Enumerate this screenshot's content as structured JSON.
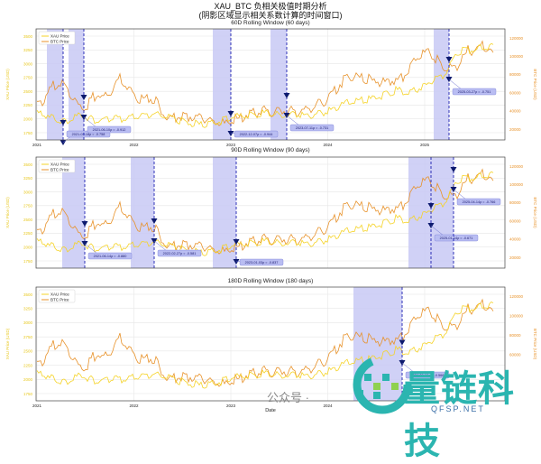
{
  "title": {
    "line1": "XAU_BTC 负相关极值时期分析",
    "line2": "(阴影区域显示相关系数计算的时间窗口)"
  },
  "xlabel": "Date",
  "watermark": {
    "brand": "量链科技",
    "url": "QFSP.NET",
    "wechat": "公众号 ·"
  },
  "colors": {
    "xau": "#f5d327",
    "btc": "#e8922a",
    "shade": "#c8c9f5",
    "marker": "#0d1a6e",
    "dash": "#1c1fb0",
    "label_bg": "#b9bdf2"
  },
  "chart_data": [
    {
      "type": "line",
      "title": "60D Rolling Window (60 days)",
      "xlabel": "",
      "ylabel_left": "XAU Price (USD)",
      "ylabel_right": "BTC Price (USD)",
      "yticks_left": [
        "3500",
        "3250",
        "3000",
        "2750",
        "2500",
        "2250",
        "2000",
        "1750"
      ],
      "yticks_right": [
        "120000",
        "100000",
        "80000",
        "60000",
        "40000",
        "20000"
      ],
      "xticks": [
        "2021",
        "2022",
        "2023",
        "2024",
        "2025"
      ],
      "legend": [
        "XAU Price",
        "BTC Price"
      ],
      "legend_position": "upper left",
      "grid": true,
      "annotations": [
        {
          "date": "2021-03-18",
          "label": "2021-03-18ρ = -0.758",
          "r": -0.758
        },
        {
          "date": "2021-06-10",
          "label": "2021-06-10ρ = -0.912",
          "r": -0.912
        },
        {
          "date": "2022-12-07",
          "label": "2022-12-07ρ = -0.944",
          "r": -0.944
        },
        {
          "date": "2023-07-11",
          "label": "2023-07-11ρ = -0.731",
          "r": -0.731
        },
        {
          "date": "2025-03-27",
          "label": "2025-03-27ρ = -0.751",
          "r": -0.751
        }
      ]
    },
    {
      "type": "line",
      "title": "90D Rolling Window (90 days)",
      "ylabel_left": "XAU Price (USD)",
      "ylabel_right": "BTC Price (USD)",
      "yticks_left": [
        "3500",
        "3250",
        "3000",
        "2750",
        "2500",
        "2250",
        "2000",
        "1750"
      ],
      "yticks_right": [
        "120000",
        "100000",
        "80000",
        "60000",
        "40000",
        "20000"
      ],
      "legend": [
        "XAU Price",
        "BTC Price"
      ],
      "grid": true,
      "annotations": [
        {
          "date": "2021-06-14",
          "label": "2021-06-14ρ = -0.880",
          "r": -0.88
        },
        {
          "date": "2022-02-27",
          "label": "2022-02-27ρ = -0.581",
          "r": -0.581
        },
        {
          "date": "2023-01-03",
          "label": "2023-01-03ρ = -0.837",
          "r": -0.837
        },
        {
          "date": "2025-01-14",
          "label": "2025-01-14ρ = -0.671",
          "r": -0.671
        },
        {
          "date": "2025-04-14",
          "label": "2025-04-14ρ = -0.766",
          "r": -0.766
        }
      ]
    },
    {
      "type": "line",
      "title": "180D Rolling Window (180 days)",
      "ylabel_left": "XAU Price (USD)",
      "ylabel_right": "BTC Price (USD)",
      "yticks_left": [
        "3500",
        "3250",
        "3000",
        "2750",
        "2500",
        "2250",
        "2000",
        "1750"
      ],
      "yticks_right": [
        "120000",
        "100000",
        "80000",
        "60000"
      ],
      "xticks": [
        "2021",
        "2022",
        "2023",
        "2024"
      ],
      "legend": [
        "XAU Price",
        "BTC Price"
      ],
      "grid": true,
      "annotations": [
        {
          "date": "2024-09-19",
          "label": "2024-09-19ρ = -0.566",
          "r": -0.566
        }
      ]
    }
  ]
}
